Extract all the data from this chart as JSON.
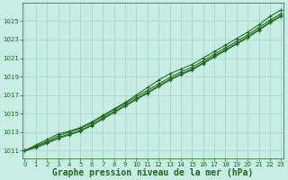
{
  "x": [
    0,
    1,
    2,
    3,
    4,
    5,
    6,
    7,
    8,
    9,
    10,
    11,
    12,
    13,
    14,
    15,
    16,
    17,
    18,
    19,
    20,
    21,
    22,
    23
  ],
  "line1": [
    1011.0,
    1011.6,
    1012.2,
    1012.8,
    1013.1,
    1013.5,
    1014.1,
    1014.8,
    1015.5,
    1016.2,
    1017.0,
    1017.8,
    1018.6,
    1019.3,
    1019.8,
    1020.3,
    1021.0,
    1021.7,
    1022.4,
    1023.1,
    1023.8,
    1024.6,
    1025.5,
    1026.2
  ],
  "line2": [
    1011.0,
    1011.5,
    1012.0,
    1012.6,
    1013.0,
    1013.4,
    1014.0,
    1014.7,
    1015.4,
    1016.1,
    1016.8,
    1017.5,
    1018.2,
    1018.9,
    1019.5,
    1020.0,
    1020.7,
    1021.4,
    1022.1,
    1022.8,
    1023.5,
    1024.3,
    1025.1,
    1025.8
  ],
  "line3": [
    1011.0,
    1011.4,
    1011.9,
    1012.4,
    1012.8,
    1013.2,
    1013.8,
    1014.5,
    1015.2,
    1015.9,
    1016.6,
    1017.3,
    1018.0,
    1018.7,
    1019.3,
    1019.8,
    1020.5,
    1021.2,
    1021.9,
    1022.6,
    1023.3,
    1024.1,
    1024.9,
    1025.6
  ],
  "line4": [
    1011.0,
    1011.3,
    1011.8,
    1012.3,
    1012.7,
    1013.1,
    1013.7,
    1014.4,
    1015.1,
    1015.8,
    1016.5,
    1017.2,
    1017.9,
    1018.6,
    1019.2,
    1019.7,
    1020.4,
    1021.1,
    1021.8,
    1022.5,
    1023.2,
    1024.0,
    1024.8,
    1025.5
  ],
  "bg_color": "#c8ede4",
  "grid_color": "#aad8cc",
  "line_color": "#1a6b1a",
  "xlabel": "Graphe pression niveau de la mer (hPa)",
  "xlabel_fontsize": 7,
  "yticks": [
    1011,
    1013,
    1015,
    1017,
    1019,
    1021,
    1023,
    1025
  ],
  "xticks": [
    0,
    1,
    2,
    3,
    4,
    5,
    6,
    7,
    8,
    9,
    10,
    11,
    12,
    13,
    14,
    15,
    16,
    17,
    18,
    19,
    20,
    21,
    22,
    23
  ],
  "ylim": [
    1010.2,
    1027.0
  ],
  "xlim": [
    -0.2,
    23.2
  ]
}
